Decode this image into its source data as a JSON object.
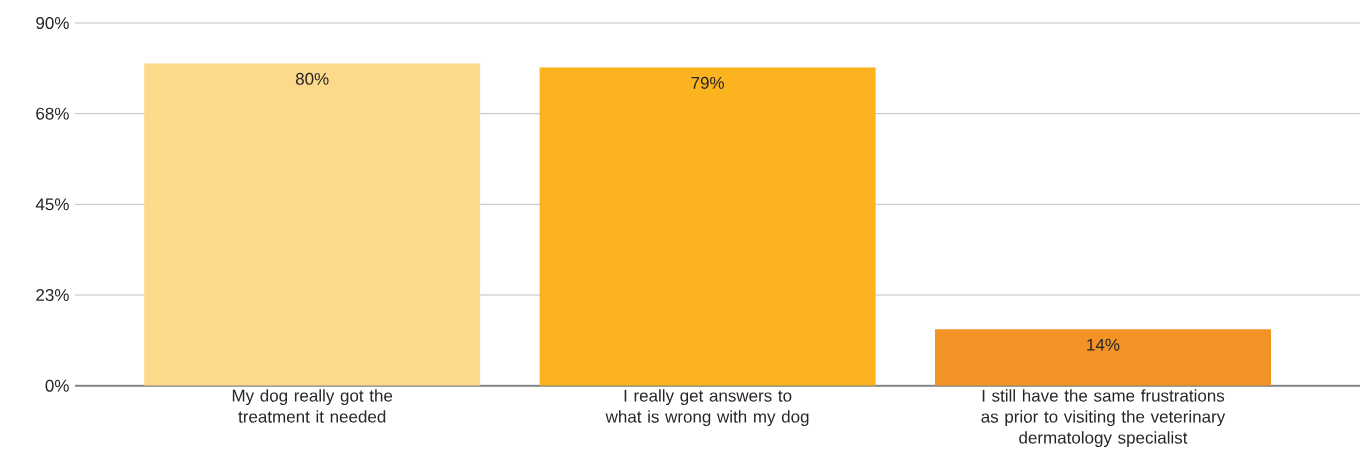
{
  "chart_data": {
    "type": "bar",
    "categories": [
      "My dog really got the treatment it needed",
      "I really get answers to what is wrong with my dog",
      "I still have the same frustrations as prior to visiting the veterinary dermatology specialist"
    ],
    "values": [
      80,
      79,
      14
    ],
    "colors": [
      "#fdd98c",
      "#fbb41f",
      "#f39325"
    ],
    "value_labels": [
      "80%",
      "79%",
      "14%"
    ],
    "ylim": [
      0,
      90
    ],
    "yticks": [
      {
        "value": 0,
        "label": "0%"
      },
      {
        "value": 22.5,
        "label": "23%"
      },
      {
        "value": 45,
        "label": "45%"
      },
      {
        "value": 67.5,
        "label": "68%"
      },
      {
        "value": 90,
        "label": "90%"
      }
    ],
    "grid": "y"
  }
}
